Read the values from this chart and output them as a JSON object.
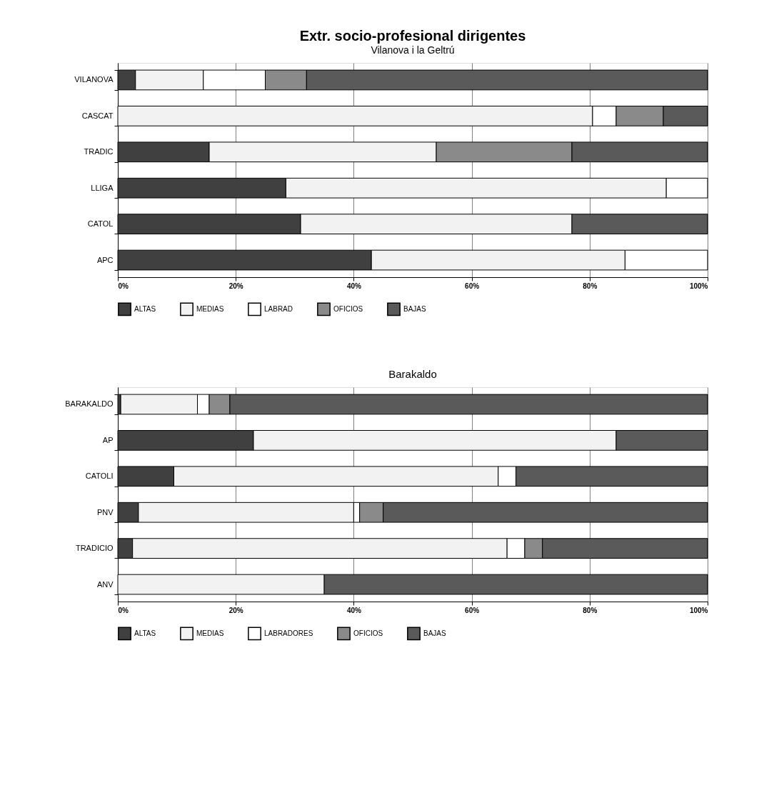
{
  "chart_data": [
    {
      "type": "bar",
      "orientation": "horizontal",
      "stacked": true,
      "title": "Extr. socio-profesional dirigentes",
      "subtitle": "Vilanova i la Geltrú",
      "categories": [
        "VILANOVA",
        "CASCAT",
        "TRADIC",
        "LLIGA",
        "CATOL",
        "APC"
      ],
      "series": [
        {
          "name": "ALTAS",
          "color": "#404040",
          "values": [
            3,
            0,
            15.5,
            28.5,
            31,
            43
          ]
        },
        {
          "name": "MEDIAS",
          "color": "#f2f2f2",
          "values": [
            11.5,
            80.5,
            38.5,
            64.5,
            46,
            43
          ]
        },
        {
          "name": "LABRAD",
          "color": "#ffffff",
          "values": [
            10.5,
            4,
            0,
            7,
            0,
            14
          ]
        },
        {
          "name": "OFICIOS",
          "color": "#8a8a8a",
          "values": [
            7,
            8,
            23,
            0,
            0,
            0
          ]
        },
        {
          "name": "BAJAS",
          "color": "#5a5a5a",
          "values": [
            68,
            7.5,
            23,
            0,
            23,
            0
          ]
        }
      ],
      "xlim": [
        0,
        100
      ],
      "xticks": [
        {
          "value": 0,
          "label": "0%"
        },
        {
          "value": 20,
          "label": "20%"
        },
        {
          "value": 40,
          "label": "40%"
        },
        {
          "value": 60,
          "label": "60%"
        },
        {
          "value": 80,
          "label": "80%"
        },
        {
          "value": 100,
          "label": "100%"
        }
      ],
      "grid": "x",
      "legend": "bottom"
    },
    {
      "type": "bar",
      "orientation": "horizontal",
      "stacked": true,
      "title": "Barakaldo",
      "categories": [
        "BARAKALDO",
        "AP",
        "CATOLI",
        "PNV",
        "TRADICIO",
        "ANV"
      ],
      "series": [
        {
          "name": "ALTAS",
          "color": "#404040",
          "values": [
            0.5,
            23,
            9.5,
            3.5,
            2.5,
            0
          ]
        },
        {
          "name": "MEDIAS",
          "color": "#f2f2f2",
          "values": [
            13,
            61.5,
            55,
            36.5,
            63.5,
            35
          ]
        },
        {
          "name": "LABRADORES",
          "color": "#ffffff",
          "values": [
            2,
            0,
            3,
            1,
            3,
            0
          ]
        },
        {
          "name": "OFICIOS",
          "color": "#8a8a8a",
          "values": [
            3.5,
            0,
            0,
            4,
            3,
            0
          ]
        },
        {
          "name": "BAJAS",
          "color": "#5a5a5a",
          "values": [
            81,
            15.5,
            32.5,
            55,
            28,
            65
          ]
        }
      ],
      "xlim": [
        0,
        100
      ],
      "xticks": [
        {
          "value": 0,
          "label": "0%"
        },
        {
          "value": 20,
          "label": "20%"
        },
        {
          "value": 40,
          "label": "40%"
        },
        {
          "value": 60,
          "label": "60%"
        },
        {
          "value": 80,
          "label": "80%"
        },
        {
          "value": 100,
          "label": "100%"
        }
      ],
      "grid": "x",
      "legend": "bottom"
    }
  ]
}
